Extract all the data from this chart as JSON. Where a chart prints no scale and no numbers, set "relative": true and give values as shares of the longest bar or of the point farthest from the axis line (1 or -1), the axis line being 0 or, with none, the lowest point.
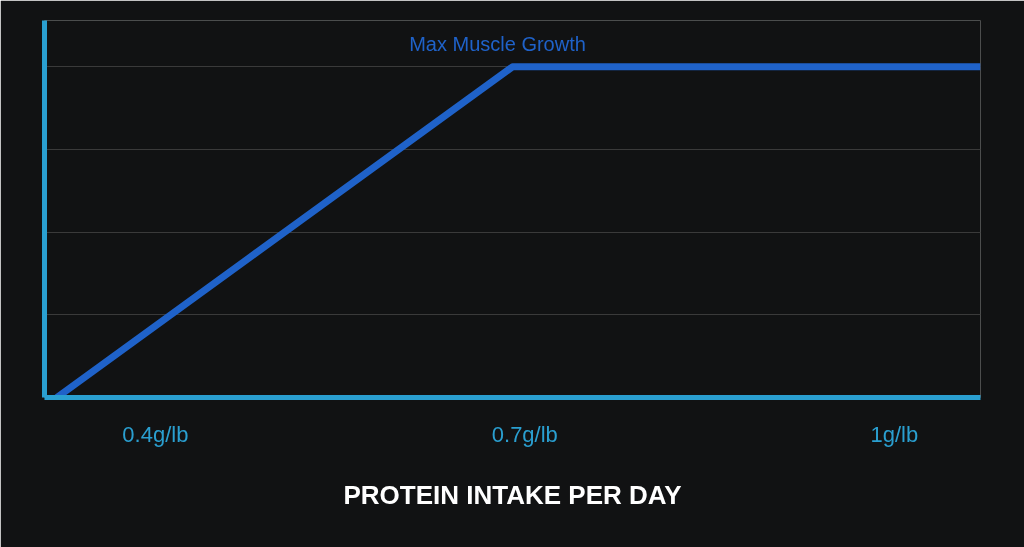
{
  "chart_data": {
    "type": "line",
    "relative": true,
    "x": [
      0.32,
      0.69,
      1.07
    ],
    "series": [
      {
        "color": "#1f62c9",
        "values": [
          0,
          1,
          1
        ]
      }
    ],
    "xlim": [
      0.31,
      1.07
    ],
    "xticks": [
      {
        "value": 0.4,
        "label": "0.4g/lb"
      },
      {
        "value": 0.7,
        "label": "0.7g/lb"
      },
      {
        "value": 1,
        "label": "1g/lb"
      }
    ],
    "xlabel": "PROTEIN INTAKE PER DAY",
    "annotations": [
      "Max Muscle Growth"
    ],
    "grid": "y",
    "marker": "none",
    "line_style": "solid"
  }
}
